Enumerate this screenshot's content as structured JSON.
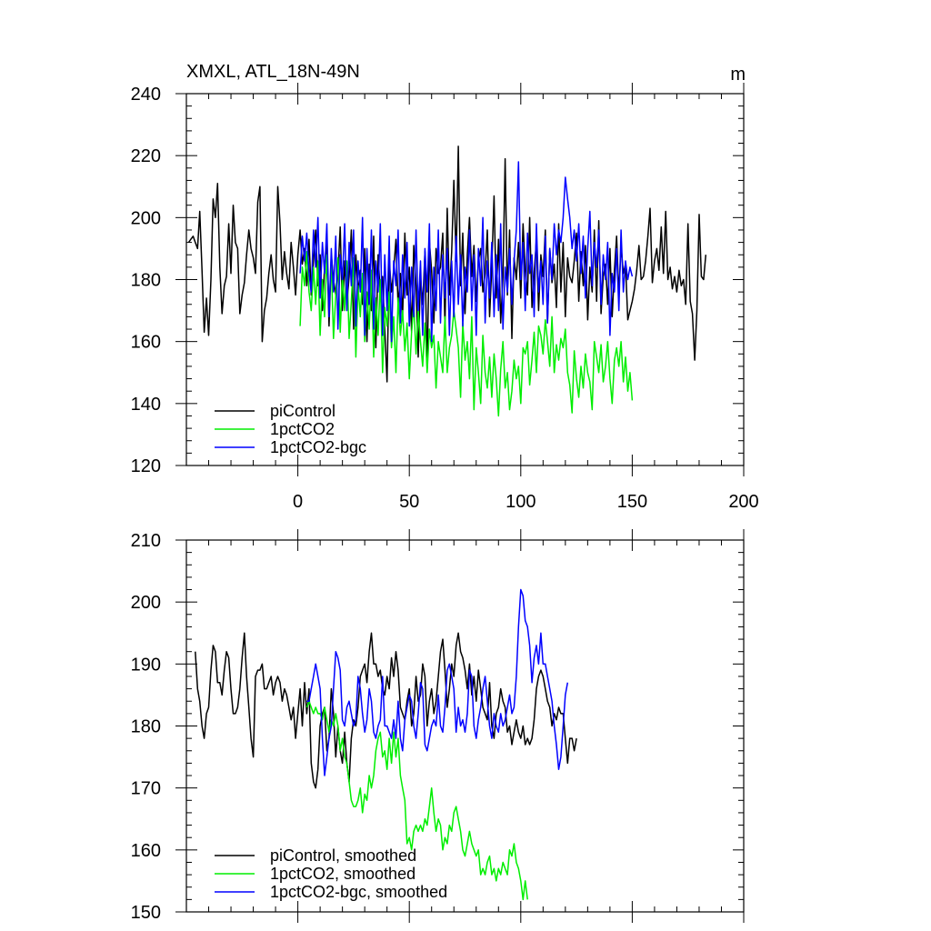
{
  "chart_data": [
    {
      "type": "line",
      "title": "XMXL, ATL_18N-49N",
      "units": "m",
      "xlim": [
        -50,
        200
      ],
      "ylim": [
        120,
        240
      ],
      "xticks": [
        0,
        50,
        100,
        150,
        200
      ],
      "yticks": [
        120,
        140,
        160,
        180,
        200,
        220,
        240
      ],
      "legend": "bottom-left",
      "series": [
        {
          "name": "piControl",
          "color": "#000000",
          "x_start": -49,
          "values": [
            192,
            193,
            194,
            192,
            190,
            202,
            183,
            163,
            174,
            162,
            180,
            206,
            200,
            211,
            184,
            169,
            178,
            181,
            198,
            182,
            204,
            192,
            190,
            169,
            175,
            179,
            188,
            196,
            190,
            187,
            182,
            205,
            210,
            160,
            170,
            174,
            182,
            188,
            180,
            176,
            210,
            198,
            180,
            189,
            182,
            177,
            192,
            184,
            175,
            188,
            196,
            185,
            190,
            178,
            193,
            175,
            186,
            196,
            178,
            188,
            170,
            184,
            192,
            165,
            188,
            180,
            175,
            182,
            197,
            170,
            186,
            172,
            181,
            196,
            164,
            188,
            176,
            183,
            172,
            190,
            160,
            185,
            170,
            194,
            158,
            188,
            175,
            181,
            164,
            147,
            186,
            176,
            183,
            193,
            171,
            182,
            168,
            195,
            175,
            184,
            163,
            191,
            178,
            155,
            181,
            172,
            189,
            151,
            192,
            183,
            166,
            190,
            182,
            184,
            195,
            165,
            203,
            175,
            189,
            212,
            186,
            223,
            178,
            195,
            169,
            188,
            200,
            181,
            191,
            173,
            186,
            190,
            176,
            182,
            196,
            168,
            184,
            207,
            174,
            193,
            166,
            181,
            219,
            175,
            196,
            161,
            187,
            180,
            192,
            174,
            198,
            183,
            175,
            200,
            171,
            182,
            193,
            170,
            188,
            181,
            196,
            166,
            190,
            179,
            185,
            171,
            198,
            176,
            192,
            168,
            187,
            181,
            179,
            186,
            195,
            173,
            189,
            178,
            191,
            167,
            184,
            176,
            196,
            173,
            199,
            169,
            181,
            185,
            172,
            190,
            168,
            183,
            194,
            175,
            191,
            182,
            185,
            167,
            170,
            173,
            177,
            183,
            191,
            180,
            181,
            186,
            194,
            203,
            179,
            186,
            190,
            183,
            197,
            182,
            202,
            180,
            184,
            177,
            181,
            176,
            183,
            178,
            180,
            172,
            198,
            173,
            169,
            154,
            170,
            201,
            181,
            180,
            188
          ]
        },
        {
          "name": "1pctCO2",
          "color": "#00ee00",
          "x_start": 1,
          "values": [
            165,
            184,
            178,
            189,
            176,
            170,
            184,
            172,
            186,
            162,
            180,
            168,
            188,
            172,
            185,
            161,
            175,
            187,
            163,
            181,
            170,
            186,
            161,
            173,
            187,
            155,
            178,
            168,
            182,
            160,
            176,
            164,
            183,
            155,
            174,
            162,
            180,
            150,
            171,
            165,
            176,
            158,
            168,
            150,
            174,
            162,
            170,
            157,
            166,
            148,
            163,
            172,
            156,
            170,
            160,
            152,
            166,
            150,
            164,
            158,
            162,
            145,
            160,
            155,
            150,
            168,
            150,
            158,
            162,
            170,
            164,
            158,
            142,
            166,
            154,
            160,
            148,
            168,
            138,
            158,
            150,
            140,
            162,
            150,
            145,
            155,
            142,
            156,
            148,
            136,
            151,
            160,
            145,
            150,
            138,
            144,
            154,
            148,
            152,
            140,
            158,
            156,
            160,
            146,
            154,
            163,
            150,
            165,
            162,
            156,
            167,
            160,
            152,
            168,
            150,
            159,
            154,
            161,
            158,
            164,
            150,
            146,
            137,
            157,
            148,
            142,
            152,
            145,
            156,
            150,
            147,
            138,
            160,
            155,
            150,
            159,
            147,
            152,
            160,
            148,
            140,
            154,
            158,
            152,
            160,
            147,
            155,
            144,
            150,
            141
          ]
        },
        {
          "name": "1pctCO2-bgc",
          "color": "#0000ff",
          "x_start": 1,
          "values": [
            182,
            194,
            186,
            195,
            182,
            176,
            196,
            184,
            200,
            174,
            192,
            182,
            198,
            168,
            190,
            176,
            194,
            164,
            188,
            180,
            198,
            170,
            192,
            178,
            196,
            165,
            186,
            176,
            200,
            162,
            190,
            172,
            196,
            164,
            186,
            176,
            198,
            162,
            188,
            170,
            194,
            160,
            186,
            178,
            196,
            166,
            188,
            174,
            192,
            165,
            184,
            168,
            196,
            170,
            186,
            162,
            190,
            176,
            198,
            160,
            184,
            170,
            196,
            166,
            188,
            174,
            190,
            162,
            186,
            168,
            194,
            172,
            188,
            165,
            184,
            176,
            196,
            170,
            188,
            162,
            190,
            178,
            200,
            166,
            186,
            174,
            192,
            168,
            188,
            170,
            198,
            164,
            184,
            176,
            190,
            172,
            186,
            196,
            218,
            180,
            192,
            170,
            195,
            182,
            188,
            168,
            198,
            176,
            186,
            172,
            194,
            166,
            190,
            180,
            198,
            188,
            196,
            192,
            200,
            213,
            206,
            200,
            190,
            196,
            186,
            198,
            182,
            194,
            174,
            190,
            202,
            178,
            192,
            184,
            196,
            172,
            188,
            180,
            192,
            162,
            182,
            176,
            190,
            170,
            196,
            176,
            186,
            180,
            184,
            181
          ]
        }
      ]
    },
    {
      "type": "line",
      "xlim": [
        -50,
        200
      ],
      "ylim": [
        150,
        210
      ],
      "yticks": [
        150,
        160,
        170,
        180,
        190,
        200,
        210
      ],
      "legend": "bottom-left",
      "series": [
        {
          "name": "piControl, smoothed",
          "color": "#000000",
          "x_start": -46,
          "values": [
            192,
            186,
            184,
            180,
            178,
            182,
            183,
            189,
            193,
            192,
            187,
            187,
            185,
            189,
            192,
            191,
            186,
            182,
            182,
            183,
            186,
            191,
            195,
            188,
            183,
            178,
            175,
            188,
            189,
            189,
            190,
            186,
            186,
            187,
            188,
            185,
            187,
            188,
            187,
            184,
            186,
            185,
            183,
            181,
            183,
            178,
            182,
            186,
            180,
            187,
            182,
            186,
            174,
            171,
            170,
            173,
            180,
            182,
            183,
            176,
            178,
            186,
            182,
            175,
            180,
            176,
            174,
            179,
            174,
            171,
            178,
            181,
            180,
            183,
            188,
            189,
            190,
            187,
            192,
            195,
            190,
            190,
            188,
            189,
            186,
            185,
            188,
            186,
            191,
            188,
            192,
            189,
            183,
            182,
            181,
            184,
            186,
            180,
            182,
            188,
            184,
            185,
            190,
            188,
            180,
            184,
            186,
            182,
            184,
            188,
            192,
            194,
            189,
            183,
            186,
            190,
            188,
            193,
            195,
            192,
            191,
            189,
            186,
            190,
            185,
            188,
            184,
            189,
            186,
            183,
            182,
            181,
            187,
            180,
            178,
            182,
            183,
            186,
            184,
            183,
            179,
            180,
            177,
            179,
            181,
            179,
            178,
            180,
            177,
            178,
            177,
            178,
            181,
            186,
            188,
            189,
            188,
            186,
            184,
            183,
            180,
            182,
            181,
            183,
            182,
            182,
            178,
            174,
            178,
            178,
            176,
            178
          ]
        },
        {
          "name": "1pctCO2, smoothed",
          "color": "#00ee00",
          "x_start": 4,
          "values": [
            183,
            184,
            183,
            182,
            183,
            182,
            182,
            181,
            183,
            181,
            179,
            181,
            180,
            182,
            180,
            176,
            178,
            175,
            174,
            171,
            168,
            167,
            167,
            168,
            170,
            166,
            169,
            168,
            172,
            170,
            172,
            176,
            178,
            179,
            175,
            176,
            173,
            178,
            174,
            179,
            175,
            178,
            172,
            170,
            168,
            161,
            162,
            160,
            163,
            164,
            163,
            164,
            163,
            165,
            164,
            167,
            170,
            166,
            163,
            165,
            164,
            160,
            162,
            161,
            164,
            163,
            166,
            167,
            165,
            163,
            160,
            159,
            161,
            163,
            161,
            160,
            159,
            160,
            156,
            157,
            156,
            158,
            159,
            156,
            157,
            155,
            157,
            156,
            158,
            157,
            156,
            160,
            159,
            161,
            158,
            157,
            155,
            152,
            155,
            152
          ]
        },
        {
          "name": "1pctCO2-bgc, smoothed",
          "color": "#0000ff",
          "x_start": 4,
          "values": [
            184,
            184,
            186,
            188,
            190,
            188,
            186,
            178,
            172,
            175,
            178,
            180,
            186,
            192,
            191,
            189,
            181,
            180,
            183,
            184,
            182,
            180,
            181,
            188,
            186,
            182,
            179,
            181,
            186,
            184,
            179,
            178,
            180,
            181,
            188,
            180,
            180,
            179,
            178,
            181,
            178,
            184,
            178,
            176,
            181,
            183,
            185,
            184,
            180,
            178,
            182,
            187,
            186,
            177,
            176,
            178,
            180,
            181,
            180,
            185,
            180,
            179,
            183,
            189,
            190,
            188,
            186,
            179,
            183,
            180,
            181,
            179,
            182,
            189,
            188,
            180,
            178,
            181,
            183,
            186,
            188,
            184,
            180,
            178,
            182,
            180,
            179,
            182,
            180,
            181,
            183,
            185,
            182,
            183,
            188,
            196,
            202,
            201,
            197,
            196,
            193,
            187,
            191,
            193,
            190,
            195,
            190,
            190,
            188,
            186,
            184,
            180,
            177,
            173,
            175,
            180,
            185,
            187
          ]
        }
      ]
    }
  ]
}
